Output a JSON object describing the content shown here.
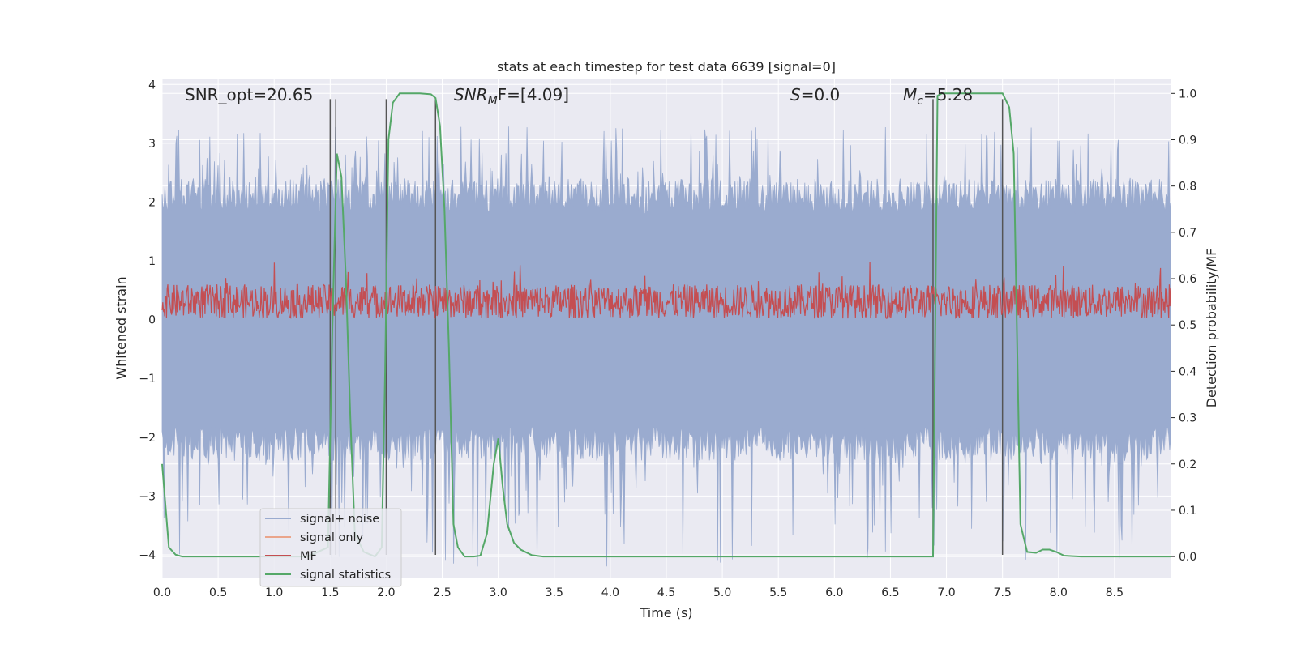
{
  "chart_data": {
    "type": "line",
    "title": "stats at each timestep for test data 6639 [signal=0]",
    "xlabel": "Time (s)",
    "ylabel": "Whitened strain",
    "ylabel_right": "Detection probability/MF",
    "xlim": [
      0.0,
      9.0
    ],
    "ylim": [
      -4.4,
      4.1
    ],
    "ylim_right": [
      -0.047,
      1.032
    ],
    "xticks": [
      "0.0",
      "0.5",
      "1.0",
      "1.5",
      "2.0",
      "2.5",
      "3.0",
      "3.5",
      "4.0",
      "4.5",
      "5.0",
      "5.5",
      "6.0",
      "6.5",
      "7.0",
      "7.5",
      "8.0",
      "8.5"
    ],
    "yticks": [
      "4",
      "3",
      "2",
      "1",
      "0",
      "−1",
      "−2",
      "−3",
      "−4"
    ],
    "yticks_right": [
      "1.0",
      "0.9",
      "0.8",
      "0.7",
      "0.6",
      "0.5",
      "0.4",
      "0.3",
      "0.2",
      "0.1",
      "0.0"
    ],
    "annotations": {
      "snr_opt": "SNR_opt=20.65",
      "snr_mf_base": "SNR",
      "snr_mf_sub": "M",
      "snr_mf_rest": "F=[4.09]",
      "s_var": "S",
      "s_rest": "=0.0",
      "mc_base": "M",
      "mc_sub": "c",
      "mc_rest": "=5.28"
    },
    "legend": {
      "location": "lower-left",
      "entries": [
        "signal+ noise",
        "signal only",
        "MF",
        "signal statistics"
      ]
    },
    "colors": {
      "background": "#eaeaf2",
      "grid": "#ffffff",
      "noise": "#9aabcf",
      "signal_only": "#eaa58b",
      "mf": "#c44e52",
      "stats": "#55a868",
      "markers": "#555555"
    },
    "series": [
      {
        "name": "signal+ noise",
        "description_of_envelope": "dense noise band",
        "envelope_upper_typical": 2.1,
        "envelope_lower_typical": -2.1,
        "peak_max": 3.3,
        "peak_min": -4.2
      },
      {
        "name": "MF",
        "band_low": 0.02,
        "band_high": 0.6,
        "peak_max": 0.98
      },
      {
        "name": "signal statistics",
        "x": [
          0.0,
          0.06,
          0.12,
          0.18,
          0.25,
          0.5,
          1.0,
          1.3,
          1.48,
          1.52,
          1.56,
          1.6,
          1.64,
          1.68,
          1.72,
          1.8,
          1.9,
          1.96,
          1.99,
          2.02,
          2.06,
          2.12,
          2.2,
          2.3,
          2.4,
          2.44,
          2.48,
          2.52,
          2.56,
          2.6,
          2.64,
          2.7,
          2.78,
          2.84,
          2.9,
          2.96,
          3.0,
          3.04,
          3.08,
          3.14,
          3.2,
          3.3,
          3.4,
          3.5,
          4.0,
          5.0,
          6.0,
          6.88,
          6.92,
          6.96,
          7.0,
          7.1,
          7.3,
          7.46,
          7.5,
          7.56,
          7.6,
          7.66,
          7.72,
          7.8,
          7.86,
          7.92,
          7.98,
          8.05,
          8.2,
          8.5,
          9.0
        ],
        "values": [
          0.2,
          0.02,
          0.004,
          0.0,
          0.0,
          0.0,
          0.0,
          0.0,
          0.02,
          0.5,
          0.87,
          0.82,
          0.6,
          0.3,
          0.05,
          0.01,
          0.0,
          0.02,
          0.4,
          0.9,
          0.98,
          1.0,
          1.0,
          1.0,
          0.998,
          0.99,
          0.93,
          0.75,
          0.45,
          0.07,
          0.02,
          0.0,
          0.0,
          0.002,
          0.05,
          0.2,
          0.255,
          0.15,
          0.07,
          0.03,
          0.015,
          0.003,
          0.0,
          0.0,
          0.0,
          0.0,
          0.0,
          0.0,
          0.995,
          1.0,
          1.0,
          1.0,
          1.0,
          1.0,
          1.0,
          0.97,
          0.87,
          0.07,
          0.01,
          0.008,
          0.015,
          0.015,
          0.01,
          0.002,
          0.0,
          0.0,
          0.0
        ]
      }
    ],
    "vertical_markers_x": [
      1.5,
      1.55,
      2.0,
      2.44,
      6.88,
      7.5
    ],
    "vertical_markers_range": [
      -4.0,
      3.75
    ]
  }
}
